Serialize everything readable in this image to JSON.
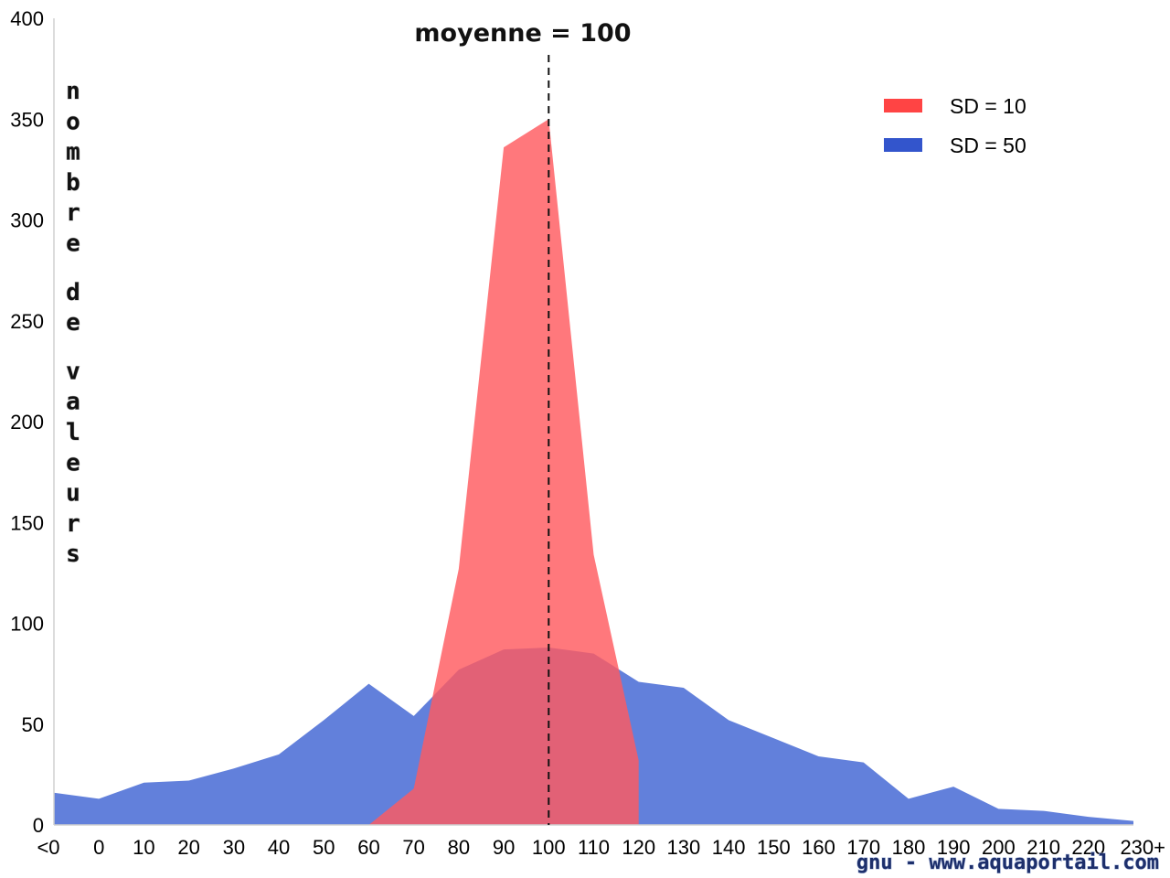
{
  "chart_data": {
    "type": "area",
    "categories": [
      "<0",
      "0",
      "10",
      "20",
      "30",
      "40",
      "50",
      "60",
      "70",
      "80",
      "90",
      "100",
      "110",
      "120",
      "130",
      "140",
      "150",
      "160",
      "170",
      "180",
      "190",
      "200",
      "210",
      "220",
      "230+"
    ],
    "series": [
      {
        "name": "SD = 50",
        "color": "#3355cc",
        "fill": "#6280db",
        "values": [
          16,
          13,
          21,
          22,
          28,
          35,
          52,
          70,
          54,
          77,
          87,
          88,
          85,
          71,
          68,
          52,
          43,
          34,
          31,
          13,
          19,
          8,
          7,
          4,
          2
        ]
      },
      {
        "name": "SD = 10",
        "color": "#ff4444",
        "fill": "#ff5a5f",
        "values": [
          0,
          0,
          0,
          0,
          0,
          0,
          0,
          0,
          18,
          127,
          336,
          350,
          134,
          32,
          0,
          0,
          0,
          0,
          0,
          0,
          0,
          0,
          0,
          0,
          0
        ]
      }
    ],
    "ylim": [
      0,
      400
    ],
    "yticks": [
      "0",
      "50",
      "100",
      "150",
      "200",
      "250",
      "300",
      "350",
      "400"
    ],
    "ylabel": "nombre de valeurs",
    "xlabel": "",
    "mean_line": {
      "x": 100,
      "label": "moyenne = 100"
    },
    "legend": {
      "position": "top-right",
      "entries": [
        "SD = 10",
        "SD = 50"
      ]
    },
    "grid": false
  },
  "watermark": "gnu - www.aquaportail.com"
}
